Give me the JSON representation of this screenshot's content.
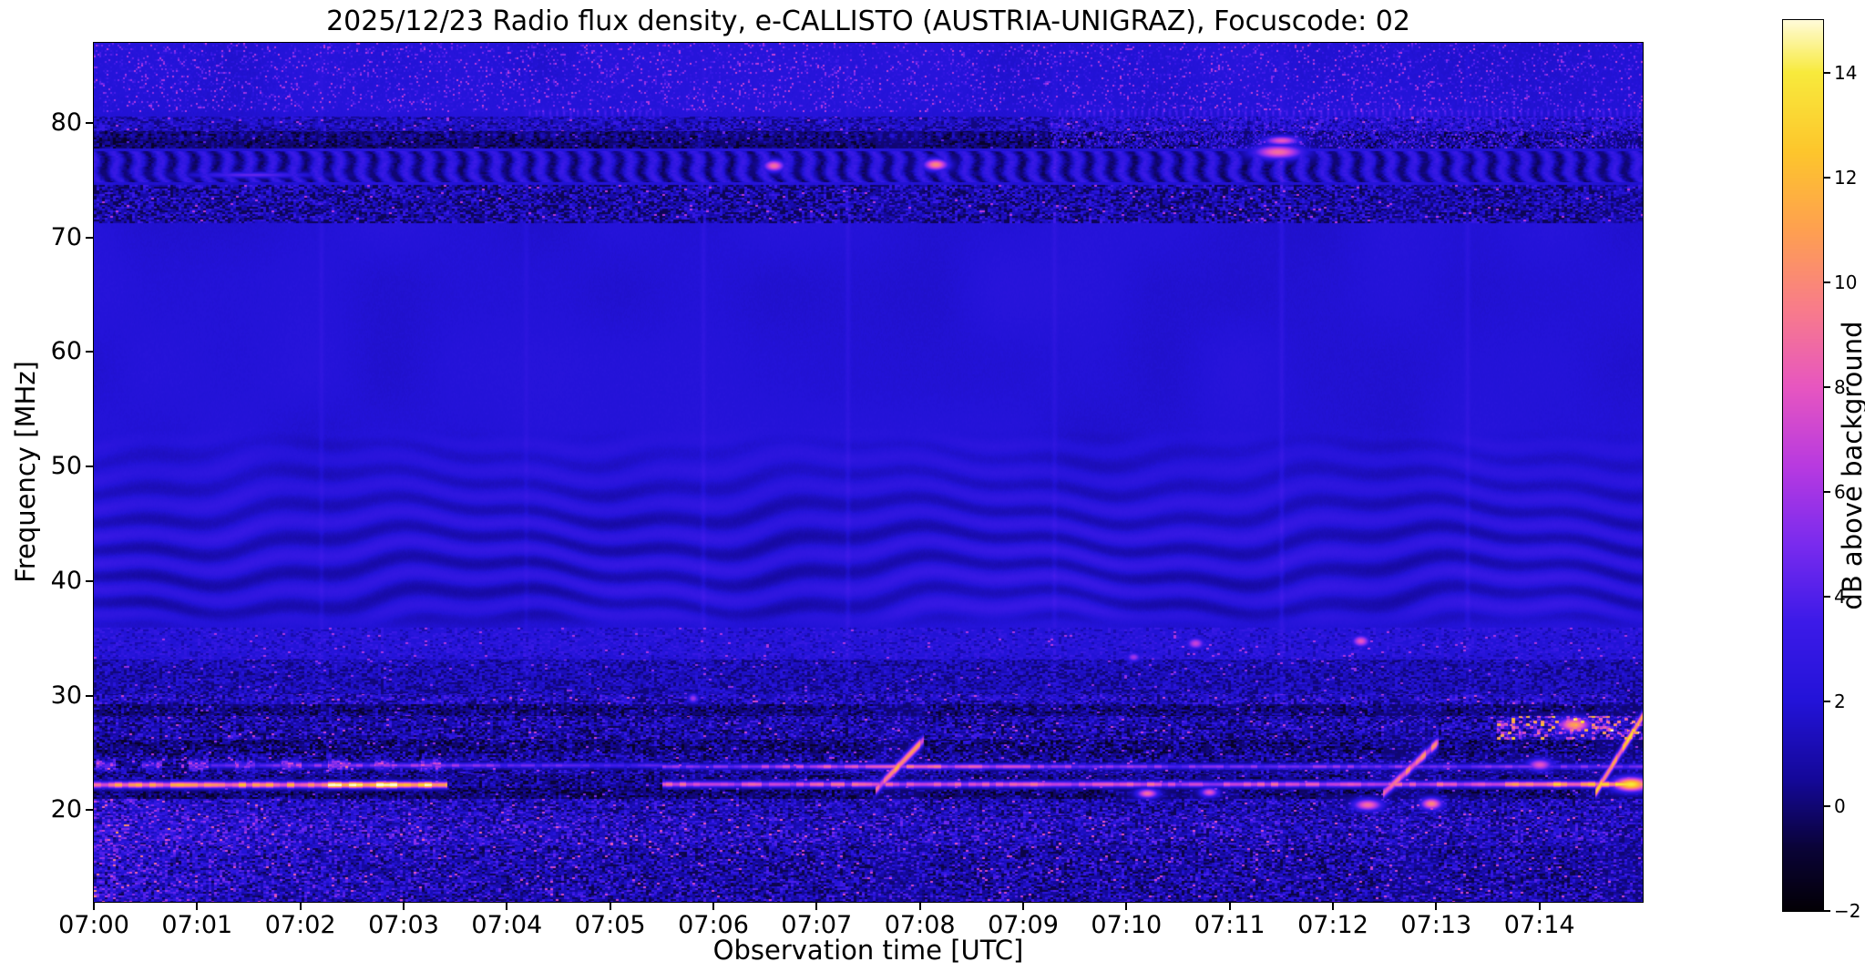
{
  "chart_data": {
    "type": "heatmap",
    "title": "2025/12/23  Radio flux density, e-CALLISTO (AUSTRIA-UNIGRAZ), Focuscode: 02",
    "xlabel": "Observation time [UTC]",
    "ylabel": "Frequency [MHz]",
    "x_ticks": [
      "07:00",
      "07:01",
      "07:02",
      "07:03",
      "07:04",
      "07:05",
      "07:06",
      "07:07",
      "07:08",
      "07:09",
      "07:10",
      "07:11",
      "07:12",
      "07:13",
      "07:14"
    ],
    "x_tick_minutes": [
      0,
      1,
      2,
      3,
      4,
      5,
      6,
      7,
      8,
      9,
      10,
      11,
      12,
      13,
      14
    ],
    "y_ticks": [
      20,
      30,
      40,
      50,
      60,
      70,
      80
    ],
    "axis": {
      "t_start": "07:00",
      "t_end": "07:15",
      "duration_s": 900,
      "f_top_mhz": 87,
      "f_bottom_mhz": 12
    },
    "colorbar": {
      "label": "dB above background",
      "ticks": [
        -2,
        0,
        2,
        4,
        6,
        8,
        10,
        12,
        14
      ],
      "vmin": -2,
      "vmax": 15
    },
    "colormap_stops": [
      [
        -2,
        "#030006"
      ],
      [
        -0.8,
        "#0a0338"
      ],
      [
        0.5,
        "#140899"
      ],
      [
        2,
        "#2313d8"
      ],
      [
        3.5,
        "#3c1ae8"
      ],
      [
        5,
        "#7a2bee"
      ],
      [
        6.5,
        "#b83ae0"
      ],
      [
        8,
        "#e756c0"
      ],
      [
        9.5,
        "#f87c8a"
      ],
      [
        11,
        "#fea050"
      ],
      [
        12.5,
        "#fdc62c"
      ],
      [
        14,
        "#f8ea3c"
      ],
      [
        15,
        "#fffbd8"
      ]
    ],
    "features": {
      "background": {
        "base": 2.0,
        "noise": 0.28
      },
      "ripple": {
        "f0": 35.8,
        "f1": 53.5,
        "f_peak": 41.5,
        "f_sigma": 7.0,
        "amp": 1.0,
        "f_period": 2.6,
        "w1a": 2.4,
        "w1t": 47,
        "w1f": 0.16,
        "w2a": 0.9,
        "w2t": 12
      },
      "bands": [
        {
          "f0": 71.3,
          "f1": 74.6,
          "mode": "speckle",
          "base": 0.5,
          "speckle": 1.1,
          "p": 3.0,
          "seed": 1,
          "dark": 0.3
        },
        {
          "f0": 74.9,
          "f1": 77.6,
          "mode": "blobs",
          "base": 1.5,
          "amp": 1.6,
          "period": 13,
          "noise": 0.8,
          "seed": 2
        },
        {
          "f0": 77.8,
          "f1": 79.3,
          "mode": "speckle",
          "base": -0.2,
          "speckle": 0.55,
          "p": 3.5,
          "seed": 3,
          "dark": 0.2,
          "bright_after": 555,
          "bright_amp": 4.5
        },
        {
          "f0": 79.3,
          "f1": 80.6,
          "mode": "speckle",
          "base": 1.1,
          "speckle": 0.8,
          "p": 3.0,
          "seed": 4,
          "dark": 0.25,
          "bright_after": 555,
          "bright_amp": 2.2
        },
        {
          "f0": 33.2,
          "f1": 36.0,
          "mode": "speckle",
          "base": 1.9,
          "speckle": 0.5,
          "p": 3.0,
          "seed": 5,
          "dark": 0.15
        },
        {
          "f0": 30.2,
          "f1": 33.2,
          "mode": "speckle",
          "base": 1.0,
          "speckle": 0.6,
          "p": 3.0,
          "seed": 6,
          "dark": 0.3
        }
      ],
      "low_rows": [
        {
          "f0": 29.3,
          "f1": 30.2,
          "base": 0.9,
          "speckle": 1.2,
          "p": 2.6,
          "seed": 11
        },
        {
          "f0": 28.3,
          "f1": 29.3,
          "base": -0.1,
          "speckle": 0.9,
          "p": 4.0,
          "seed": 12
        },
        {
          "f0": 26.2,
          "f1": 28.3,
          "base": 0.4,
          "speckle": 1.3,
          "p": 3.0,
          "seed": 13,
          "hot_after": 815,
          "hot_amp": 11
        },
        {
          "f0": 25.0,
          "f1": 26.2,
          "base": -0.2,
          "speckle": 1.1,
          "p": 3.6,
          "seed": 14
        },
        {
          "f0": 23.2,
          "f1": 25.0,
          "base": 0.2,
          "speckle": 1.2,
          "p": 3.2,
          "seed": 15,
          "dash_f": 24.0,
          "dash_amp": 5.0,
          "dash_period": 27,
          "dash_until": 215
        },
        {
          "f0": 22.0,
          "f1": 23.2,
          "base": 0.1,
          "speckle": 1.0,
          "p": 3.4,
          "seed": 16
        },
        {
          "f0": 21.0,
          "f1": 22.0,
          "base": -0.3,
          "speckle": 0.9,
          "p": 3.8,
          "seed": 17
        },
        {
          "f0": 19.5,
          "f1": 21.0,
          "base": 0.5,
          "speckle": 1.3,
          "p": 3.0,
          "seed": 18
        },
        {
          "f0": 17.0,
          "f1": 19.5,
          "base": 0.7,
          "speckle": 1.5,
          "p": 2.8,
          "seed": 19
        },
        {
          "f0": 12.0,
          "f1": 17.0,
          "base": 0.3,
          "speckle": 1.4,
          "p": 3.2,
          "seed": 20
        }
      ],
      "left_boost": {
        "f_max": 21,
        "amp": 1.6,
        "tau": 150
      },
      "hlines": [
        {
          "f": 22.25,
          "t0": 0,
          "t1": 205,
          "w": 0.28,
          "v": 10.0,
          "vmax": 15,
          "peak_t": 168,
          "peak_w": 40,
          "seed": 1
        },
        {
          "f": 22.3,
          "t0": 330,
          "t1": 900,
          "w": 0.26,
          "v": 7.5,
          "vmax": 12,
          "peak_t": 880,
          "peak_w": 60,
          "seed": 2
        },
        {
          "f": 23.85,
          "t0": 330,
          "t1": 900,
          "w": 0.22,
          "v": 5.0,
          "vmax": 8,
          "peak_t": 470,
          "peak_w": 80,
          "seed": 3
        },
        {
          "f": 23.95,
          "t0": 55,
          "t1": 330,
          "w": 0.22,
          "v": 3.5,
          "vmax": 5.5,
          "peak_t": 170,
          "peak_w": 90,
          "seed": 4
        }
      ],
      "bursts": [
        {
          "t": 468,
          "dt": 14,
          "f0": 21.8,
          "f1": 26.2,
          "v": 10
        },
        {
          "t": 765,
          "dt": 16,
          "f0": 21.5,
          "f1": 26.0,
          "v": 9
        },
        {
          "t": 886,
          "dt": 14,
          "f0": 21.5,
          "f1": 28.3,
          "v": 12
        }
      ],
      "spots": [
        [
          395,
          76.3,
          9,
          6,
          0.5
        ],
        [
          489,
          76.4,
          10,
          7,
          0.5
        ],
        [
          688,
          77.5,
          9,
          14,
          0.6
        ],
        [
          690,
          78.5,
          8,
          10,
          0.4
        ],
        [
          92,
          75.5,
          4.5,
          35,
          0.25
        ],
        [
          348,
          29.8,
          6,
          3,
          0.4
        ],
        [
          604,
          33.4,
          6,
          4,
          0.4
        ],
        [
          640,
          34.6,
          7,
          5,
          0.5
        ],
        [
          736,
          34.8,
          8,
          5,
          0.5
        ],
        [
          612,
          21.5,
          9,
          6,
          0.4
        ],
        [
          648,
          21.6,
          8,
          5,
          0.4
        ],
        [
          740,
          20.5,
          9,
          8,
          0.5
        ],
        [
          777,
          20.6,
          10,
          6,
          0.5
        ],
        [
          893,
          22.3,
          14,
          10,
          0.6
        ],
        [
          860,
          27.5,
          11,
          9,
          0.6
        ],
        [
          840,
          24.0,
          8,
          7,
          0.5
        ]
      ],
      "vlines": [
        [
          132,
          0.5
        ],
        [
          251,
          0.4
        ],
        [
          354,
          0.6
        ],
        [
          438,
          0.6
        ],
        [
          558,
          0.5
        ],
        [
          690,
          0.7
        ],
        [
          798,
          0.6
        ]
      ],
      "dotted": [
        {
          "f": 80.9,
          "t0": 250,
          "t1": 330,
          "amp": 1.8,
          "period": 4
        },
        {
          "f": 80.9,
          "t0": 560,
          "t1": 900,
          "amp": 2.0,
          "period": 4
        },
        {
          "f": 78.9,
          "t0": 0,
          "t1": 555,
          "amp": 1.2,
          "period": 7
        }
      ],
      "high_speck": {
        "f_min": 81,
        "amp": 2.5,
        "p": 12
      }
    }
  }
}
